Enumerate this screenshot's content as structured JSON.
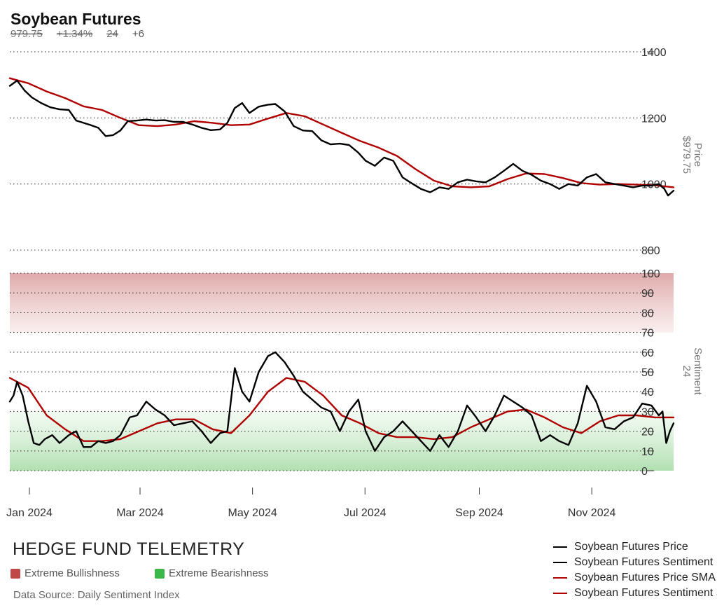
{
  "header": {
    "title": "Soybean Futures",
    "stats": [
      "979.75",
      "+1.34%",
      "24",
      "+6"
    ]
  },
  "colors": {
    "price": "#000000",
    "sentiment": "#000000",
    "sma": "#b00000",
    "bullish_zone": "#c04848",
    "bearish_zone": "#3cb84a"
  },
  "chart_data": [
    {
      "type": "line",
      "panel": "price",
      "ylabel": "Price",
      "ylabel_value": "$979.75",
      "ylim": [
        800,
        1400
      ],
      "yticks": [
        "1400",
        "1200",
        "1000",
        "800"
      ],
      "grid": "dotted horizontal",
      "series": [
        {
          "name": "Soybean Futures Price",
          "points": [
            [
              "2024-01-01",
              1297
            ],
            [
              "2024-01-05",
              1313
            ],
            [
              "2024-01-09",
              1283
            ],
            [
              "2024-01-13",
              1262
            ],
            [
              "2024-01-18",
              1245
            ],
            [
              "2024-01-23",
              1232
            ],
            [
              "2024-01-28",
              1226
            ],
            [
              "2024-02-02",
              1224
            ],
            [
              "2024-02-06",
              1192
            ],
            [
              "2024-02-10",
              1185
            ],
            [
              "2024-02-14",
              1178
            ],
            [
              "2024-02-18",
              1170
            ],
            [
              "2024-02-22",
              1145
            ],
            [
              "2024-02-26",
              1148
            ],
            [
              "2024-03-01",
              1162
            ],
            [
              "2024-03-05",
              1190
            ],
            [
              "2024-03-10",
              1192
            ],
            [
              "2024-03-15",
              1195
            ],
            [
              "2024-03-20",
              1192
            ],
            [
              "2024-03-25",
              1193
            ],
            [
              "2024-03-30",
              1188
            ],
            [
              "2024-04-04",
              1188
            ],
            [
              "2024-04-09",
              1180
            ],
            [
              "2024-04-14",
              1170
            ],
            [
              "2024-04-19",
              1163
            ],
            [
              "2024-04-24",
              1165
            ],
            [
              "2024-04-28",
              1185
            ],
            [
              "2024-05-02",
              1230
            ],
            [
              "2024-05-06",
              1245
            ],
            [
              "2024-05-10",
              1215
            ],
            [
              "2024-05-15",
              1234
            ],
            [
              "2024-05-20",
              1240
            ],
            [
              "2024-05-24",
              1242
            ],
            [
              "2024-05-29",
              1220
            ],
            [
              "2024-06-03",
              1175
            ],
            [
              "2024-06-08",
              1162
            ],
            [
              "2024-06-13",
              1160
            ],
            [
              "2024-06-18",
              1132
            ],
            [
              "2024-06-23",
              1120
            ],
            [
              "2024-06-28",
              1122
            ],
            [
              "2024-07-03",
              1118
            ],
            [
              "2024-07-08",
              1095
            ],
            [
              "2024-07-12",
              1070
            ],
            [
              "2024-07-17",
              1055
            ],
            [
              "2024-07-22",
              1080
            ],
            [
              "2024-07-27",
              1070
            ],
            [
              "2024-08-01",
              1020
            ],
            [
              "2024-08-06",
              1002
            ],
            [
              "2024-08-11",
              985
            ],
            [
              "2024-08-16",
              975
            ],
            [
              "2024-08-21",
              990
            ],
            [
              "2024-08-26",
              985
            ],
            [
              "2024-08-31",
              1005
            ],
            [
              "2024-09-05",
              1013
            ],
            [
              "2024-09-10",
              1008
            ],
            [
              "2024-09-15",
              1005
            ],
            [
              "2024-09-20",
              1020
            ],
            [
              "2024-09-25",
              1040
            ],
            [
              "2024-09-30",
              1061
            ],
            [
              "2024-10-05",
              1040
            ],
            [
              "2024-10-10",
              1028
            ],
            [
              "2024-10-15",
              1010
            ],
            [
              "2024-10-20",
              1000
            ],
            [
              "2024-10-25",
              985
            ],
            [
              "2024-10-30",
              1000
            ],
            [
              "2024-11-04",
              995
            ],
            [
              "2024-11-09",
              1020
            ],
            [
              "2024-11-14",
              1030
            ],
            [
              "2024-11-19",
              1005
            ],
            [
              "2024-11-24",
              1000
            ],
            [
              "2024-11-29",
              995
            ],
            [
              "2024-12-04",
              990
            ],
            [
              "2024-12-09",
              995
            ],
            [
              "2024-12-14",
              995
            ],
            [
              "2024-12-18",
              1000
            ],
            [
              "2024-12-21",
              985
            ],
            [
              "2024-12-23",
              965
            ],
            [
              "2024-12-26",
              980
            ]
          ]
        },
        {
          "name": "Soybean Futures Price SMA",
          "points": [
            [
              "2024-01-01",
              1320
            ],
            [
              "2024-01-11",
              1305
            ],
            [
              "2024-01-21",
              1280
            ],
            [
              "2024-01-31",
              1260
            ],
            [
              "2024-02-10",
              1235
            ],
            [
              "2024-02-20",
              1224
            ],
            [
              "2024-03-01",
              1200
            ],
            [
              "2024-03-11",
              1178
            ],
            [
              "2024-03-21",
              1175
            ],
            [
              "2024-03-31",
              1180
            ],
            [
              "2024-04-10",
              1190
            ],
            [
              "2024-04-20",
              1185
            ],
            [
              "2024-04-30",
              1178
            ],
            [
              "2024-05-10",
              1180
            ],
            [
              "2024-05-20",
              1198
            ],
            [
              "2024-05-30",
              1215
            ],
            [
              "2024-06-09",
              1205
            ],
            [
              "2024-06-19",
              1180
            ],
            [
              "2024-06-29",
              1155
            ],
            [
              "2024-07-09",
              1130
            ],
            [
              "2024-07-19",
              1110
            ],
            [
              "2024-07-29",
              1085
            ],
            [
              "2024-08-08",
              1045
            ],
            [
              "2024-08-18",
              1010
            ],
            [
              "2024-08-28",
              993
            ],
            [
              "2024-09-07",
              990
            ],
            [
              "2024-09-17",
              993
            ],
            [
              "2024-09-27",
              1015
            ],
            [
              "2024-10-07",
              1032
            ],
            [
              "2024-10-17",
              1030
            ],
            [
              "2024-10-27",
              1018
            ],
            [
              "2024-11-06",
              1003
            ],
            [
              "2024-11-16",
              998
            ],
            [
              "2024-11-26",
              1000
            ],
            [
              "2024-12-06",
              998
            ],
            [
              "2024-12-16",
              996
            ],
            [
              "2024-12-26",
              990
            ]
          ]
        }
      ]
    },
    {
      "type": "line",
      "panel": "sentiment",
      "ylabel": "Sentiment",
      "ylabel_value": "24",
      "ylim": [
        0,
        100
      ],
      "yticks": [
        "100",
        "90",
        "80",
        "70",
        "60",
        "50",
        "40",
        "30",
        "20",
        "10",
        "0"
      ],
      "zones": [
        {
          "label": "Extreme Bullishness",
          "from": 70,
          "to": 100
        },
        {
          "label": "Extreme Bearishness",
          "from": 0,
          "to": 30
        }
      ],
      "x_tick_labels": [
        "Jan 2024",
        "Mar 2024",
        "May 2024",
        "Jul 2024",
        "Sep 2024",
        "Nov 2024"
      ],
      "series": [
        {
          "name": "Soybean Futures Sentiment",
          "points": [
            [
              "2024-01-01",
              35
            ],
            [
              "2024-01-03",
              38
            ],
            [
              "2024-01-05",
              45
            ],
            [
              "2024-01-08",
              38
            ],
            [
              "2024-01-11",
              25
            ],
            [
              "2024-01-14",
              14
            ],
            [
              "2024-01-17",
              13
            ],
            [
              "2024-01-20",
              16
            ],
            [
              "2024-01-24",
              18
            ],
            [
              "2024-01-28",
              14
            ],
            [
              "2024-02-02",
              18
            ],
            [
              "2024-02-06",
              20
            ],
            [
              "2024-02-10",
              12
            ],
            [
              "2024-02-14",
              12
            ],
            [
              "2024-02-18",
              15
            ],
            [
              "2024-02-22",
              14
            ],
            [
              "2024-02-26",
              15
            ],
            [
              "2024-03-01",
              18
            ],
            [
              "2024-03-06",
              27
            ],
            [
              "2024-03-10",
              28
            ],
            [
              "2024-03-15",
              35
            ],
            [
              "2024-03-20",
              31
            ],
            [
              "2024-03-25",
              28
            ],
            [
              "2024-03-30",
              23
            ],
            [
              "2024-04-04",
              24
            ],
            [
              "2024-04-09",
              25
            ],
            [
              "2024-04-14",
              20
            ],
            [
              "2024-04-19",
              14
            ],
            [
              "2024-04-24",
              19
            ],
            [
              "2024-04-28",
              20
            ],
            [
              "2024-05-02",
              52
            ],
            [
              "2024-05-06",
              40
            ],
            [
              "2024-05-10",
              35
            ],
            [
              "2024-05-15",
              50
            ],
            [
              "2024-05-20",
              58
            ],
            [
              "2024-05-24",
              60
            ],
            [
              "2024-05-29",
              55
            ],
            [
              "2024-06-03",
              48
            ],
            [
              "2024-06-08",
              40
            ],
            [
              "2024-06-13",
              36
            ],
            [
              "2024-06-18",
              32
            ],
            [
              "2024-06-23",
              30
            ],
            [
              "2024-06-28",
              20
            ],
            [
              "2024-07-03",
              30
            ],
            [
              "2024-07-08",
              36
            ],
            [
              "2024-07-12",
              20
            ],
            [
              "2024-07-17",
              10
            ],
            [
              "2024-07-22",
              17
            ],
            [
              "2024-07-27",
              20
            ],
            [
              "2024-08-01",
              25
            ],
            [
              "2024-08-06",
              20
            ],
            [
              "2024-08-11",
              15
            ],
            [
              "2024-08-16",
              10
            ],
            [
              "2024-08-21",
              18
            ],
            [
              "2024-08-26",
              12
            ],
            [
              "2024-08-31",
              20
            ],
            [
              "2024-09-05",
              33
            ],
            [
              "2024-09-10",
              27
            ],
            [
              "2024-09-15",
              20
            ],
            [
              "2024-09-20",
              28
            ],
            [
              "2024-09-25",
              38
            ],
            [
              "2024-09-30",
              35
            ],
            [
              "2024-10-05",
              32
            ],
            [
              "2024-10-10",
              28
            ],
            [
              "2024-10-15",
              15
            ],
            [
              "2024-10-20",
              18
            ],
            [
              "2024-10-25",
              15
            ],
            [
              "2024-10-30",
              13
            ],
            [
              "2024-11-04",
              24
            ],
            [
              "2024-11-09",
              43
            ],
            [
              "2024-11-14",
              35
            ],
            [
              "2024-11-19",
              22
            ],
            [
              "2024-11-24",
              21
            ],
            [
              "2024-11-29",
              25
            ],
            [
              "2024-12-04",
              27
            ],
            [
              "2024-12-09",
              34
            ],
            [
              "2024-12-14",
              33
            ],
            [
              "2024-12-18",
              28
            ],
            [
              "2024-12-20",
              30
            ],
            [
              "2024-12-22",
              14
            ],
            [
              "2024-12-24",
              20
            ],
            [
              "2024-12-26",
              24
            ]
          ]
        },
        {
          "name": "Soybean Futures Sentiment SMA",
          "points": [
            [
              "2024-01-01",
              47
            ],
            [
              "2024-01-11",
              42
            ],
            [
              "2024-01-21",
              28
            ],
            [
              "2024-01-31",
              21
            ],
            [
              "2024-02-10",
              15
            ],
            [
              "2024-02-20",
              15
            ],
            [
              "2024-03-01",
              16
            ],
            [
              "2024-03-11",
              20
            ],
            [
              "2024-03-21",
              24
            ],
            [
              "2024-03-31",
              26
            ],
            [
              "2024-04-10",
              26
            ],
            [
              "2024-04-20",
              21
            ],
            [
              "2024-04-30",
              19
            ],
            [
              "2024-05-10",
              28
            ],
            [
              "2024-05-20",
              40
            ],
            [
              "2024-05-30",
              47
            ],
            [
              "2024-06-09",
              45
            ],
            [
              "2024-06-19",
              38
            ],
            [
              "2024-06-29",
              28
            ],
            [
              "2024-07-09",
              24
            ],
            [
              "2024-07-19",
              19
            ],
            [
              "2024-07-29",
              17
            ],
            [
              "2024-08-08",
              17
            ],
            [
              "2024-08-18",
              16
            ],
            [
              "2024-08-28",
              17
            ],
            [
              "2024-09-07",
              22
            ],
            [
              "2024-09-17",
              26
            ],
            [
              "2024-09-27",
              30
            ],
            [
              "2024-10-07",
              31
            ],
            [
              "2024-10-17",
              27
            ],
            [
              "2024-10-27",
              22
            ],
            [
              "2024-11-06",
              19
            ],
            [
              "2024-11-16",
              25
            ],
            [
              "2024-11-26",
              28
            ],
            [
              "2024-12-06",
              28
            ],
            [
              "2024-12-16",
              27
            ],
            [
              "2024-12-26",
              27
            ]
          ]
        }
      ]
    }
  ],
  "footer": {
    "brand": "HEDGE FUND TELEMETRY",
    "zone_legend": [
      "Extreme Bullishness",
      "Extreme Bearishness"
    ],
    "source": "Data Source: Daily Sentiment Index",
    "legend": [
      {
        "label": "Soybean Futures Price",
        "color": "#000000"
      },
      {
        "label": "Soybean Futures Sentiment",
        "color": "#000000"
      },
      {
        "label": "Soybean Futures Price SMA",
        "color": "#b00000"
      },
      {
        "label": "Soybean Futures Sentiment SMA",
        "color": "#b00000"
      }
    ]
  }
}
